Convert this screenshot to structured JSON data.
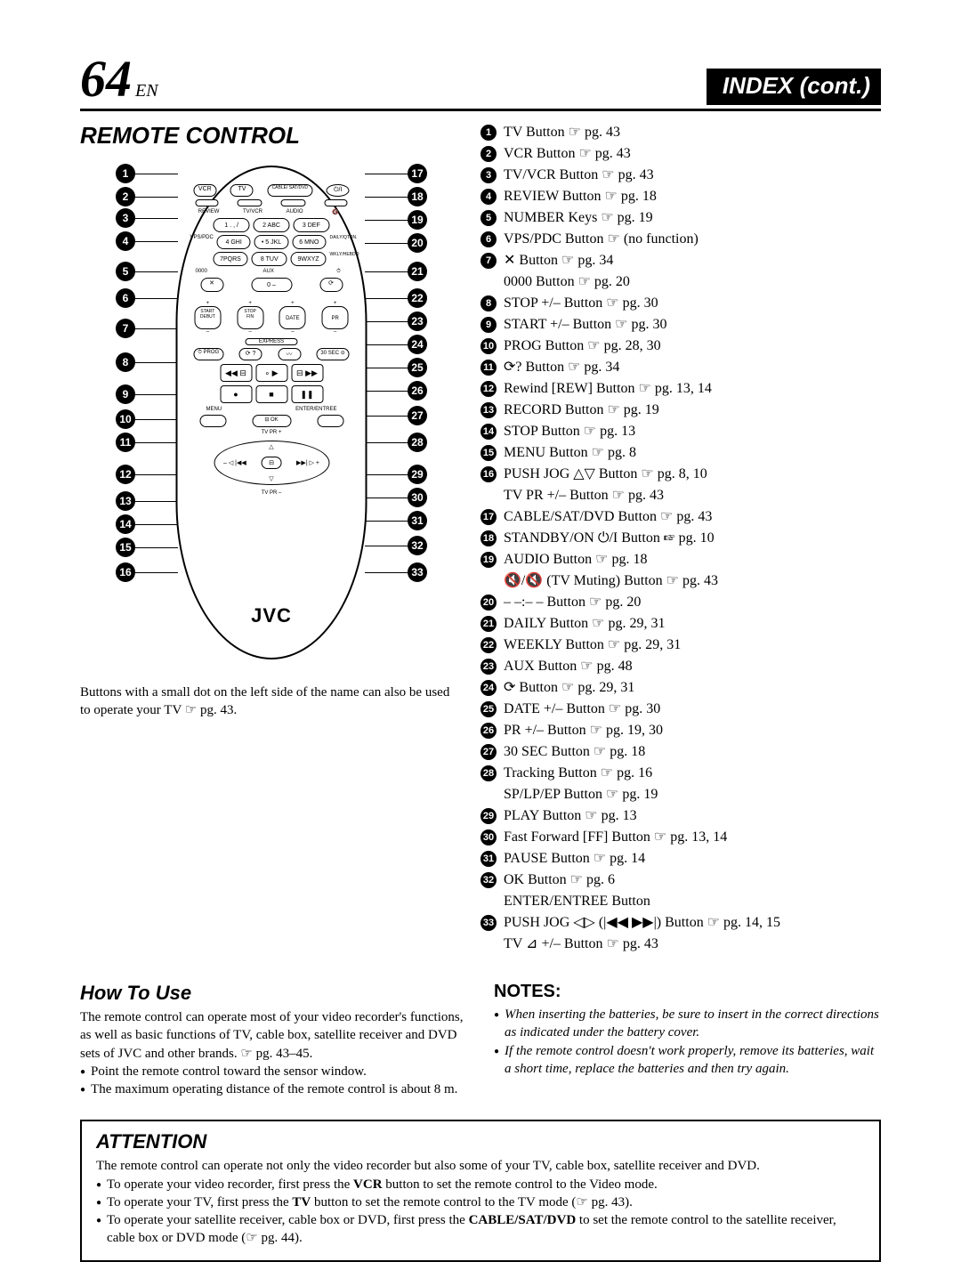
{
  "header": {
    "page_number": "64",
    "lang": "EN",
    "index_title": "INDEX (cont.)"
  },
  "remote": {
    "title": "REMOTE CONTROL",
    "brand": "JVC",
    "top_row": [
      "VCR",
      "TV",
      "CABLE/\nSAT/DVD",
      "⏻/I"
    ],
    "second_row_labels": [
      "REVIEW",
      "TV/VCR",
      "AUDIO"
    ],
    "num_keys": [
      "1 . , /",
      "2 ABC",
      "3 DEF",
      "4 GHI",
      "• 5 JKL",
      "6 MNO",
      "7PQRS",
      "8 TUV",
      "9WXYZ"
    ],
    "num_left_labels": [
      "",
      "VPS/PDC",
      ""
    ],
    "num_right_labels": [
      "",
      "DAILY/QTDN.",
      "WKLY/HEBDO"
    ],
    "zero_row": [
      "✕",
      "0 –",
      "⟳"
    ],
    "zero_labels": [
      "0000",
      "AUX",
      ""
    ],
    "stopstart": [
      "START\nDEBUT",
      "STOP\nFIN",
      "DATE",
      "PR"
    ],
    "express": "EXPRESS",
    "prog_row": [
      "⏱ PROG",
      "⟳ ?",
      "〰",
      "30 SEC ⊝"
    ],
    "transport": [
      "◀◀ ⊟",
      "∘ ▶",
      "⊟ ▶▶"
    ],
    "transport2": [
      "●",
      "■",
      "❚❚"
    ],
    "menu_label": "MENU",
    "enter_label": "ENTER/ENTREE",
    "ok_label": "⊟ OK",
    "jog_top": "TV PR +",
    "jog_bottom": "TV PR –",
    "footnote": "Buttons with a small dot on the left side of the name can also be used to operate your TV ☞ pg. 43.",
    "left_callouts_count": 16,
    "right_callouts_count": 17
  },
  "list": [
    {
      "n": "1",
      "text": "TV Button ☞ pg. 43"
    },
    {
      "n": "2",
      "text": "VCR Button ☞ pg. 43"
    },
    {
      "n": "3",
      "text": "TV/VCR Button ☞ pg. 43"
    },
    {
      "n": "4",
      "text": "REVIEW Button ☞ pg. 18"
    },
    {
      "n": "5",
      "text": "NUMBER Keys ☞ pg. 19"
    },
    {
      "n": "6",
      "text": "VPS/PDC Button ☞ (no function)"
    },
    {
      "n": "7",
      "text": "✕ Button ☞ pg. 34",
      "sub": "0000 Button ☞ pg. 20"
    },
    {
      "n": "8",
      "text": "STOP +/– Button ☞ pg. 30"
    },
    {
      "n": "9",
      "text": "START +/– Button ☞ pg. 30"
    },
    {
      "n": "10",
      "text": "PROG Button ☞ pg. 28, 30"
    },
    {
      "n": "11",
      "text": "⟳? Button ☞ pg. 34"
    },
    {
      "n": "12",
      "text": "Rewind [REW] Button ☞ pg. 13, 14"
    },
    {
      "n": "13",
      "text": "RECORD Button ☞ pg. 19"
    },
    {
      "n": "14",
      "text": "STOP Button ☞ pg. 13"
    },
    {
      "n": "15",
      "text": "MENU Button ☞ pg. 8"
    },
    {
      "n": "16",
      "text": "PUSH JOG △▽ Button ☞ pg. 8, 10",
      "sub": "TV PR +/– Button ☞ pg. 43"
    },
    {
      "n": "17",
      "text": "CABLE/SAT/DVD Button ☞ pg. 43"
    },
    {
      "n": "18",
      "text": "STANDBY/ON ⏻/I Button ☞ pg. 10"
    },
    {
      "n": "19",
      "text": "AUDIO Button ☞ pg. 18",
      "sub": "🔇/🔇 (TV Muting) Button ☞ pg. 43"
    },
    {
      "n": "20",
      "text": "– –:– – Button ☞ pg. 20"
    },
    {
      "n": "21",
      "text": "DAILY Button ☞ pg. 29, 31"
    },
    {
      "n": "22",
      "text": "WEEKLY Button ☞ pg. 29, 31"
    },
    {
      "n": "23",
      "text": "AUX Button ☞ pg. 48"
    },
    {
      "n": "24",
      "text": "⟳ Button ☞ pg. 29, 31"
    },
    {
      "n": "25",
      "text": "DATE +/– Button ☞ pg. 30"
    },
    {
      "n": "26",
      "text": "PR +/– Button ☞ pg. 19, 30"
    },
    {
      "n": "27",
      "text": "30 SEC Button ☞ pg. 18"
    },
    {
      "n": "28",
      "text": "Tracking Button ☞ pg. 16",
      "sub": "SP/LP/EP Button ☞ pg. 19"
    },
    {
      "n": "29",
      "text": "PLAY Button ☞ pg. 13"
    },
    {
      "n": "30",
      "text": "Fast Forward [FF] Button ☞ pg. 13, 14"
    },
    {
      "n": "31",
      "text": "PAUSE Button ☞ pg. 14"
    },
    {
      "n": "32",
      "text": "OK Button ☞ pg. 6",
      "sub": "ENTER/ENTREE Button"
    },
    {
      "n": "33",
      "text": "PUSH JOG ◁▷ (|◀◀ ▶▶|) Button ☞ pg. 14, 15",
      "sub": "TV ⊿ +/– Button ☞ pg. 43"
    }
  ],
  "howto": {
    "title": "How To Use",
    "body": "The remote control can operate most of your video recorder's functions, as well as basic functions of TV, cable box, satellite receiver and DVD sets of JVC and other brands. ☞ pg. 43–45.",
    "bullets": [
      "Point the remote control toward the sensor window.",
      "The maximum operating distance of the remote control is about 8 m."
    ]
  },
  "notes": {
    "title": "NOTES:",
    "bullets": [
      "When inserting the batteries, be sure to insert in the correct directions as indicated under the battery cover.",
      "If the remote control doesn't work properly, remove its batteries, wait a short time, replace the batteries and then try again."
    ]
  },
  "attention": {
    "title": "ATTENTION",
    "body": "The remote control can operate not only the video recorder but also some of your TV, cable box, satellite receiver and DVD.",
    "bullets": [
      {
        "pre": "To operate your video recorder, first press the ",
        "bold": "VCR",
        "post": " button to set the remote control to the Video mode."
      },
      {
        "pre": "To operate your TV, first press the ",
        "bold": "TV",
        "post": " button to set the remote control to the TV mode (☞ pg. 43)."
      },
      {
        "pre": "To operate your satellite receiver, cable box or DVD, first press the ",
        "bold": "CABLE/SAT/DVD",
        "post": " to set the remote control to the satellite receiver, cable box or DVD mode (☞ pg. 44)."
      }
    ]
  },
  "layout": {
    "left_y": [
      0,
      26,
      50,
      76,
      110,
      140,
      174,
      212,
      248,
      276,
      302,
      338,
      368,
      394,
      420,
      448
    ],
    "right_y": [
      0,
      26,
      52,
      78,
      110,
      140,
      166,
      192,
      218,
      244,
      272,
      302,
      338,
      364,
      390,
      418,
      448
    ]
  }
}
